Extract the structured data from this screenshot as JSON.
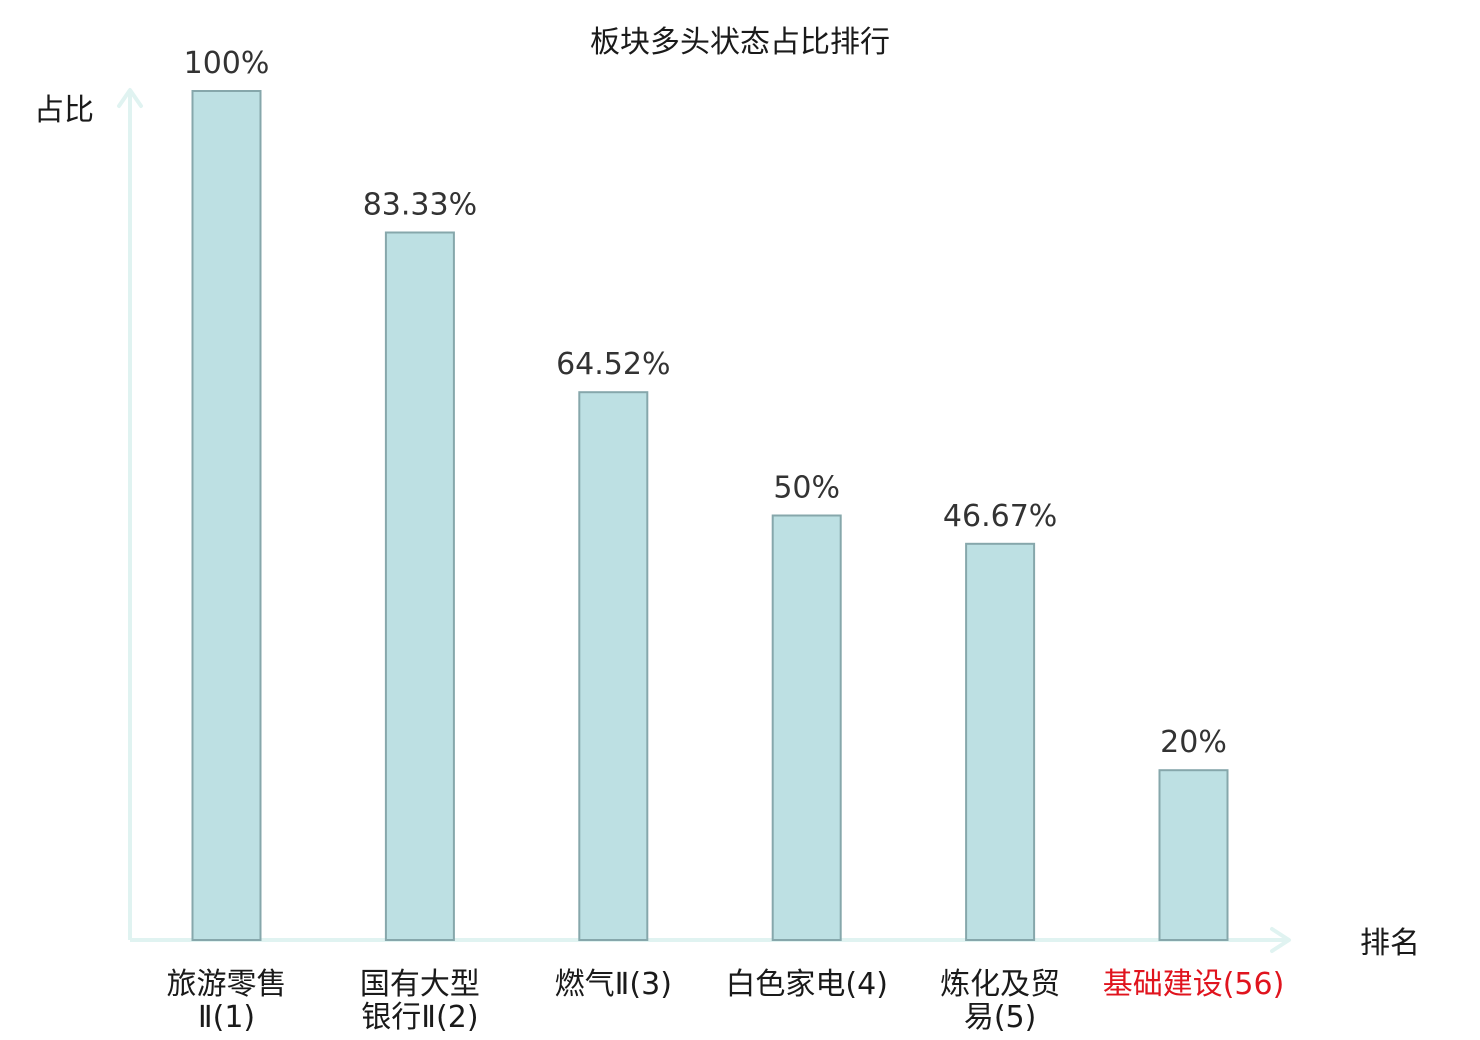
{
  "chart_data": {
    "type": "bar",
    "title": "板块多头状态占比排行",
    "xlabel": "排名",
    "ylabel": "占比",
    "ylim": [
      0,
      100
    ],
    "grid": false,
    "categories": [
      {
        "lines": [
          "旅游零售",
          "Ⅱ(1)"
        ],
        "highlight": false
      },
      {
        "lines": [
          "国有大型",
          "银行Ⅱ(2)"
        ],
        "highlight": false
      },
      {
        "lines": [
          "燃气Ⅱ(3)"
        ],
        "highlight": false
      },
      {
        "lines": [
          "白色家电(4)"
        ],
        "highlight": false
      },
      {
        "lines": [
          "炼化及贸",
          "易(5)"
        ],
        "highlight": false
      },
      {
        "lines": [
          "基础建设(56)"
        ],
        "highlight": true
      }
    ],
    "values": [
      100,
      83.33,
      64.52,
      50,
      46.67,
      20
    ],
    "value_labels": [
      "100%",
      "83.33%",
      "64.52%",
      "50%",
      "46.67%",
      "20%"
    ],
    "colors": {
      "bar_fill": "#bde0e3",
      "bar_stroke": "#86a7ab",
      "axis": "#e0f3f1",
      "highlight_text": "#e0141e",
      "text": "#1a1a1a",
      "value_text": "#333333"
    }
  }
}
